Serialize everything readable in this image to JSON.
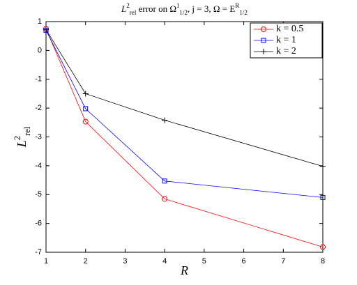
{
  "chart_data": {
    "type": "line",
    "title": [
      {
        "t": "L"
      },
      {
        "t": "2",
        "pos": "sup"
      },
      {
        "t": "rel",
        "pos": "sub"
      },
      {
        "t": " error on Ω"
      },
      {
        "t": "1",
        "pos": "sup"
      },
      {
        "t": "1/2",
        "pos": "sub"
      },
      {
        "t": ", j = 3, Ω = E"
      },
      {
        "t": "R",
        "pos": "sup"
      },
      {
        "t": "1/2",
        "pos": "sub"
      }
    ],
    "xlabel": "R",
    "ylabel": [
      {
        "t": "L"
      },
      {
        "t": "2",
        "pos": "sup"
      },
      {
        "t": "rel",
        "pos": "sub"
      }
    ],
    "x": [
      1,
      2,
      4,
      8
    ],
    "series": [
      {
        "name": "k = 0.5",
        "color": "#ff0000",
        "marker": "circle",
        "values": [
          0.75,
          -2.47,
          -5.15,
          -6.82
        ]
      },
      {
        "name": "k = 1",
        "color": "#0000ff",
        "marker": "square",
        "values": [
          0.7,
          -2.02,
          -4.53,
          -5.1
        ]
      },
      {
        "name": "k = 2",
        "color": "#000000",
        "marker": "plus",
        "values": [
          0.72,
          -1.5,
          -2.42,
          -4.02
        ]
      }
    ],
    "xlim": [
      1,
      8
    ],
    "xticks": [
      1,
      2,
      3,
      4,
      5,
      6,
      7,
      8
    ],
    "ylim": [
      -7,
      1
    ],
    "yticks": [
      -7,
      -6,
      -5,
      -4,
      -3,
      -2,
      -1,
      0,
      1
    ],
    "grid": false,
    "legend": "top-right"
  }
}
